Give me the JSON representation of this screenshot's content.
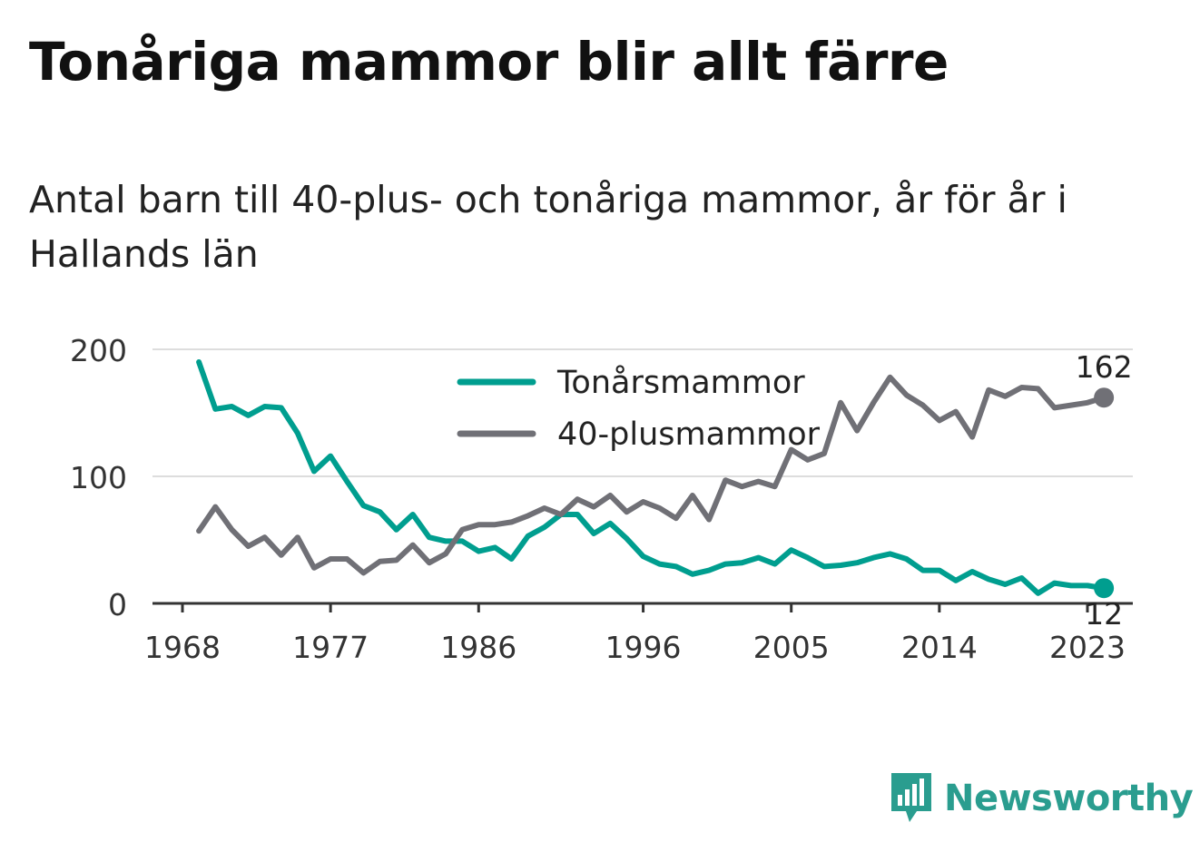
{
  "title": "Tonåriga mammor blir allt färre",
  "subtitle": "Antal barn till 40-plus- och tonåriga mammor, år för år i Hallands län",
  "brand": {
    "name": "Newsworthy",
    "logo_icon": "bar-chart-icon"
  },
  "chart_data": {
    "type": "line",
    "x_ticks": [
      1968,
      1977,
      1986,
      1996,
      2005,
      2014,
      2023
    ],
    "y_ticks": [
      0,
      100,
      200
    ],
    "ylim": [
      0,
      200
    ],
    "xlim": [
      1968,
      2023
    ],
    "grid": true,
    "legend_position": "top-center",
    "series": [
      {
        "name": "Tonårsmammor",
        "color": "#009e8f",
        "end_label": "12",
        "points": [
          [
            1969,
            190
          ],
          [
            1970,
            153
          ],
          [
            1971,
            155
          ],
          [
            1972,
            148
          ],
          [
            1973,
            155
          ],
          [
            1974,
            154
          ],
          [
            1975,
            134
          ],
          [
            1976,
            104
          ],
          [
            1977,
            116
          ],
          [
            1978,
            96
          ],
          [
            1979,
            77
          ],
          [
            1980,
            72
          ],
          [
            1981,
            58
          ],
          [
            1982,
            70
          ],
          [
            1983,
            52
          ],
          [
            1984,
            49
          ],
          [
            1985,
            49
          ],
          [
            1986,
            41
          ],
          [
            1987,
            44
          ],
          [
            1988,
            35
          ],
          [
            1989,
            53
          ],
          [
            1990,
            60
          ],
          [
            1991,
            70
          ],
          [
            1992,
            70
          ],
          [
            1993,
            55
          ],
          [
            1994,
            63
          ],
          [
            1995,
            51
          ],
          [
            1996,
            37
          ],
          [
            1997,
            31
          ],
          [
            1998,
            29
          ],
          [
            1999,
            23
          ],
          [
            2000,
            26
          ],
          [
            2001,
            31
          ],
          [
            2002,
            32
          ],
          [
            2003,
            36
          ],
          [
            2004,
            31
          ],
          [
            2005,
            42
          ],
          [
            2006,
            36
          ],
          [
            2007,
            29
          ],
          [
            2008,
            30
          ],
          [
            2009,
            32
          ],
          [
            2010,
            36
          ],
          [
            2011,
            39
          ],
          [
            2012,
            35
          ],
          [
            2013,
            26
          ],
          [
            2014,
            26
          ],
          [
            2015,
            18
          ],
          [
            2016,
            25
          ],
          [
            2017,
            19
          ],
          [
            2018,
            15
          ],
          [
            2019,
            20
          ],
          [
            2020,
            8
          ],
          [
            2021,
            16
          ],
          [
            2022,
            14
          ],
          [
            2023,
            14
          ],
          [
            2024,
            12
          ]
        ]
      },
      {
        "name": "40-plusmammor",
        "color": "#707076",
        "end_label": "162",
        "points": [
          [
            1969,
            57
          ],
          [
            1970,
            76
          ],
          [
            1971,
            58
          ],
          [
            1972,
            45
          ],
          [
            1973,
            52
          ],
          [
            1974,
            38
          ],
          [
            1975,
            52
          ],
          [
            1976,
            28
          ],
          [
            1977,
            35
          ],
          [
            1978,
            35
          ],
          [
            1979,
            24
          ],
          [
            1980,
            33
          ],
          [
            1981,
            34
          ],
          [
            1982,
            46
          ],
          [
            1983,
            32
          ],
          [
            1984,
            39
          ],
          [
            1985,
            58
          ],
          [
            1986,
            62
          ],
          [
            1987,
            62
          ],
          [
            1988,
            64
          ],
          [
            1989,
            69
          ],
          [
            1990,
            75
          ],
          [
            1991,
            70
          ],
          [
            1992,
            82
          ],
          [
            1993,
            76
          ],
          [
            1994,
            85
          ],
          [
            1995,
            72
          ],
          [
            1996,
            80
          ],
          [
            1997,
            75
          ],
          [
            1998,
            67
          ],
          [
            1999,
            85
          ],
          [
            2000,
            66
          ],
          [
            2001,
            97
          ],
          [
            2002,
            92
          ],
          [
            2003,
            96
          ],
          [
            2004,
            92
          ],
          [
            2005,
            121
          ],
          [
            2006,
            113
          ],
          [
            2007,
            118
          ],
          [
            2008,
            158
          ],
          [
            2009,
            136
          ],
          [
            2010,
            158
          ],
          [
            2011,
            178
          ],
          [
            2012,
            164
          ],
          [
            2013,
            156
          ],
          [
            2014,
            144
          ],
          [
            2015,
            151
          ],
          [
            2016,
            131
          ],
          [
            2017,
            168
          ],
          [
            2018,
            163
          ],
          [
            2019,
            170
          ],
          [
            2020,
            169
          ],
          [
            2021,
            154
          ],
          [
            2022,
            156
          ],
          [
            2023,
            158
          ],
          [
            2024,
            162
          ]
        ]
      }
    ]
  }
}
